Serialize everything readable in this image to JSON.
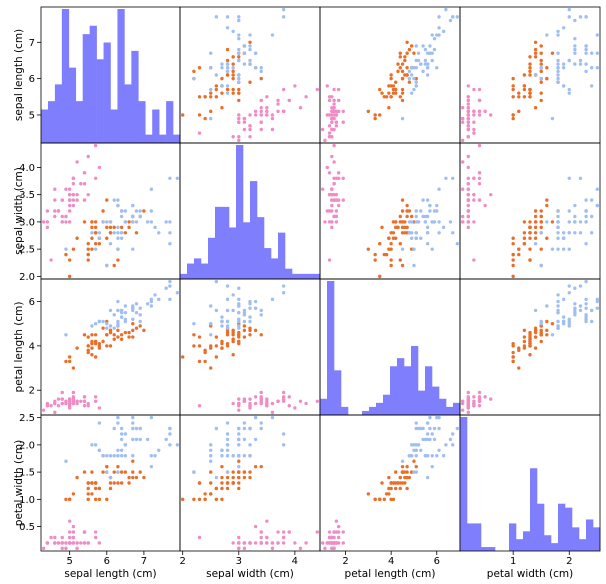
{
  "chart_data": {
    "type": "scatter_matrix",
    "variables": [
      "sepal length (cm)",
      "sepal width (cm)",
      "petal length (cm)",
      "petal width (cm)"
    ],
    "ranges": [
      [
        4.3,
        7.9
      ],
      [
        2.0,
        4.4
      ],
      [
        1.0,
        6.9
      ],
      [
        0.1,
        2.5
      ]
    ],
    "ticks": [
      [
        5,
        6,
        7
      ],
      [
        2.0,
        2.5,
        3.0,
        3.5,
        4.0
      ],
      [
        2,
        4,
        6
      ],
      [
        0.5,
        1.0,
        1.5,
        2.0,
        2.5
      ]
    ],
    "bottom_ticks": [
      [
        5,
        6,
        7
      ],
      [
        2,
        3,
        4
      ],
      [
        2,
        4,
        6
      ],
      [
        1,
        2
      ]
    ],
    "hist_color": "#7f7ffd",
    "point_colors": [
      "#f08cc5",
      "#e86f2a",
      "#a0bff0"
    ],
    "grid": false,
    "samples": [
      [
        [
          5.1,
          3.5,
          1.4,
          0.2
        ],
        [
          4.9,
          3.0,
          1.4,
          0.2
        ],
        [
          4.7,
          3.2,
          1.3,
          0.2
        ],
        [
          4.6,
          3.1,
          1.5,
          0.2
        ],
        [
          5.0,
          3.6,
          1.4,
          0.2
        ],
        [
          5.4,
          3.9,
          1.7,
          0.4
        ],
        [
          4.6,
          3.4,
          1.4,
          0.3
        ],
        [
          5.0,
          3.4,
          1.5,
          0.2
        ],
        [
          4.4,
          2.9,
          1.4,
          0.2
        ],
        [
          4.9,
          3.1,
          1.5,
          0.1
        ],
        [
          5.4,
          3.7,
          1.5,
          0.2
        ],
        [
          4.8,
          3.4,
          1.6,
          0.2
        ],
        [
          4.8,
          3.0,
          1.4,
          0.1
        ],
        [
          4.3,
          3.0,
          1.1,
          0.1
        ],
        [
          5.8,
          4.0,
          1.2,
          0.2
        ],
        [
          5.7,
          4.4,
          1.5,
          0.4
        ],
        [
          5.4,
          3.9,
          1.3,
          0.4
        ],
        [
          5.1,
          3.5,
          1.4,
          0.3
        ],
        [
          5.7,
          3.8,
          1.7,
          0.3
        ],
        [
          5.1,
          3.8,
          1.5,
          0.3
        ],
        [
          5.4,
          3.4,
          1.7,
          0.2
        ],
        [
          5.1,
          3.7,
          1.5,
          0.4
        ],
        [
          4.6,
          3.6,
          1.0,
          0.2
        ],
        [
          5.1,
          3.3,
          1.7,
          0.5
        ],
        [
          4.8,
          3.4,
          1.9,
          0.2
        ],
        [
          5.0,
          3.0,
          1.6,
          0.2
        ],
        [
          5.0,
          3.4,
          1.6,
          0.4
        ],
        [
          5.2,
          3.5,
          1.5,
          0.2
        ],
        [
          5.2,
          3.4,
          1.4,
          0.2
        ],
        [
          4.7,
          3.2,
          1.6,
          0.2
        ],
        [
          4.8,
          3.1,
          1.6,
          0.2
        ],
        [
          5.4,
          3.4,
          1.5,
          0.4
        ],
        [
          5.2,
          4.1,
          1.5,
          0.1
        ],
        [
          5.5,
          4.2,
          1.4,
          0.2
        ],
        [
          4.9,
          3.1,
          1.5,
          0.2
        ],
        [
          5.0,
          3.2,
          1.2,
          0.2
        ],
        [
          5.5,
          3.5,
          1.3,
          0.2
        ],
        [
          4.9,
          3.6,
          1.4,
          0.1
        ],
        [
          4.4,
          3.0,
          1.3,
          0.2
        ],
        [
          5.1,
          3.4,
          1.5,
          0.2
        ],
        [
          5.0,
          3.5,
          1.3,
          0.3
        ],
        [
          4.5,
          2.3,
          1.3,
          0.3
        ],
        [
          4.4,
          3.2,
          1.3,
          0.2
        ],
        [
          5.0,
          3.5,
          1.6,
          0.6
        ],
        [
          5.1,
          3.8,
          1.9,
          0.4
        ],
        [
          4.8,
          3.0,
          1.4,
          0.3
        ],
        [
          5.1,
          3.8,
          1.6,
          0.2
        ],
        [
          4.6,
          3.2,
          1.4,
          0.2
        ],
        [
          5.3,
          3.7,
          1.5,
          0.2
        ],
        [
          5.0,
          3.3,
          1.4,
          0.2
        ]
      ],
      [
        [
          7.0,
          3.2,
          4.7,
          1.4
        ],
        [
          6.4,
          3.2,
          4.5,
          1.5
        ],
        [
          6.9,
          3.1,
          4.9,
          1.5
        ],
        [
          5.5,
          2.3,
          4.0,
          1.3
        ],
        [
          6.5,
          2.8,
          4.6,
          1.5
        ],
        [
          5.7,
          2.8,
          4.5,
          1.3
        ],
        [
          6.3,
          3.3,
          4.7,
          1.6
        ],
        [
          4.9,
          2.4,
          3.3,
          1.0
        ],
        [
          6.6,
          2.9,
          4.6,
          1.3
        ],
        [
          5.2,
          2.7,
          3.9,
          1.4
        ],
        [
          5.0,
          2.0,
          3.5,
          1.0
        ],
        [
          5.9,
          3.0,
          4.2,
          1.5
        ],
        [
          6.0,
          2.2,
          4.0,
          1.0
        ],
        [
          6.1,
          2.9,
          4.7,
          1.4
        ],
        [
          5.6,
          2.9,
          3.6,
          1.3
        ],
        [
          6.7,
          3.1,
          4.4,
          1.4
        ],
        [
          5.6,
          3.0,
          4.5,
          1.5
        ],
        [
          5.8,
          2.7,
          4.1,
          1.0
        ],
        [
          6.2,
          2.2,
          4.5,
          1.5
        ],
        [
          5.6,
          2.5,
          3.9,
          1.1
        ],
        [
          5.9,
          3.2,
          4.8,
          1.8
        ],
        [
          6.1,
          2.8,
          4.0,
          1.3
        ],
        [
          6.3,
          2.5,
          4.9,
          1.5
        ],
        [
          6.1,
          2.8,
          4.7,
          1.2
        ],
        [
          6.4,
          2.9,
          4.3,
          1.3
        ],
        [
          6.6,
          3.0,
          4.4,
          1.4
        ],
        [
          6.8,
          2.8,
          4.8,
          1.4
        ],
        [
          6.7,
          3.0,
          5.0,
          1.7
        ],
        [
          6.0,
          2.9,
          4.5,
          1.5
        ],
        [
          5.7,
          2.6,
          3.5,
          1.0
        ],
        [
          5.5,
          2.4,
          3.8,
          1.1
        ],
        [
          5.5,
          2.4,
          3.7,
          1.0
        ],
        [
          5.8,
          2.7,
          3.9,
          1.2
        ],
        [
          6.0,
          2.7,
          5.1,
          1.6
        ],
        [
          5.4,
          3.0,
          4.5,
          1.5
        ],
        [
          6.0,
          3.4,
          4.5,
          1.6
        ],
        [
          6.7,
          3.1,
          4.7,
          1.5
        ],
        [
          6.3,
          2.3,
          4.4,
          1.3
        ],
        [
          5.6,
          3.0,
          4.1,
          1.3
        ],
        [
          5.5,
          2.5,
          4.0,
          1.3
        ],
        [
          5.5,
          2.6,
          4.4,
          1.2
        ],
        [
          6.1,
          3.0,
          4.6,
          1.4
        ],
        [
          5.8,
          2.6,
          4.0,
          1.2
        ],
        [
          5.0,
          2.3,
          3.3,
          1.0
        ],
        [
          5.6,
          2.7,
          4.2,
          1.3
        ],
        [
          5.7,
          3.0,
          4.2,
          1.2
        ],
        [
          5.7,
          2.9,
          4.2,
          1.3
        ],
        [
          6.2,
          2.9,
          4.3,
          1.3
        ],
        [
          5.1,
          2.5,
          3.0,
          1.1
        ],
        [
          5.7,
          2.8,
          4.1,
          1.3
        ]
      ],
      [
        [
          6.3,
          3.3,
          6.0,
          2.5
        ],
        [
          5.8,
          2.7,
          5.1,
          1.9
        ],
        [
          7.1,
          3.0,
          5.9,
          2.1
        ],
        [
          6.3,
          2.9,
          5.6,
          1.8
        ],
        [
          6.5,
          3.0,
          5.8,
          2.2
        ],
        [
          7.6,
          3.0,
          6.6,
          2.1
        ],
        [
          4.9,
          2.5,
          4.5,
          1.7
        ],
        [
          7.3,
          2.9,
          6.3,
          1.8
        ],
        [
          6.7,
          2.5,
          5.8,
          1.8
        ],
        [
          7.2,
          3.6,
          6.1,
          2.5
        ],
        [
          6.5,
          3.2,
          5.1,
          2.0
        ],
        [
          6.4,
          2.7,
          5.3,
          1.9
        ],
        [
          6.8,
          3.0,
          5.5,
          2.1
        ],
        [
          5.7,
          2.5,
          5.0,
          2.0
        ],
        [
          5.8,
          2.8,
          5.1,
          2.4
        ],
        [
          6.4,
          3.2,
          5.3,
          2.3
        ],
        [
          6.5,
          3.0,
          5.5,
          1.8
        ],
        [
          7.7,
          3.8,
          6.7,
          2.2
        ],
        [
          7.7,
          2.6,
          6.9,
          2.3
        ],
        [
          6.0,
          2.2,
          5.0,
          1.5
        ],
        [
          6.9,
          3.2,
          5.7,
          2.3
        ],
        [
          5.6,
          2.8,
          4.9,
          2.0
        ],
        [
          7.7,
          2.8,
          6.7,
          2.0
        ],
        [
          6.3,
          2.7,
          4.9,
          1.8
        ],
        [
          6.7,
          3.3,
          5.7,
          2.1
        ],
        [
          7.2,
          3.2,
          6.0,
          1.8
        ],
        [
          6.2,
          2.8,
          4.8,
          1.8
        ],
        [
          6.1,
          3.0,
          4.9,
          1.8
        ],
        [
          6.4,
          2.8,
          5.6,
          2.1
        ],
        [
          7.2,
          3.0,
          5.8,
          1.6
        ],
        [
          7.4,
          2.8,
          6.1,
          1.9
        ],
        [
          7.9,
          3.8,
          6.4,
          2.0
        ],
        [
          6.4,
          2.8,
          5.6,
          2.2
        ],
        [
          6.3,
          2.8,
          5.1,
          1.5
        ],
        [
          6.1,
          2.6,
          5.6,
          1.4
        ],
        [
          7.7,
          3.0,
          6.1,
          2.3
        ],
        [
          6.3,
          3.4,
          5.6,
          2.4
        ],
        [
          6.4,
          3.1,
          5.5,
          1.8
        ],
        [
          6.0,
          3.0,
          4.8,
          1.8
        ],
        [
          6.9,
          3.1,
          5.4,
          2.1
        ],
        [
          6.7,
          3.1,
          5.6,
          2.4
        ],
        [
          6.9,
          3.1,
          5.1,
          2.3
        ],
        [
          5.8,
          2.7,
          5.1,
          1.9
        ],
        [
          6.8,
          3.2,
          5.9,
          2.3
        ],
        [
          6.7,
          3.3,
          5.7,
          2.5
        ],
        [
          6.7,
          3.0,
          5.2,
          2.3
        ],
        [
          6.3,
          2.5,
          5.0,
          1.9
        ],
        [
          6.5,
          3.0,
          5.2,
          2.0
        ],
        [
          6.2,
          3.4,
          5.4,
          2.3
        ],
        [
          5.9,
          3.0,
          5.1,
          1.8
        ]
      ]
    ]
  }
}
